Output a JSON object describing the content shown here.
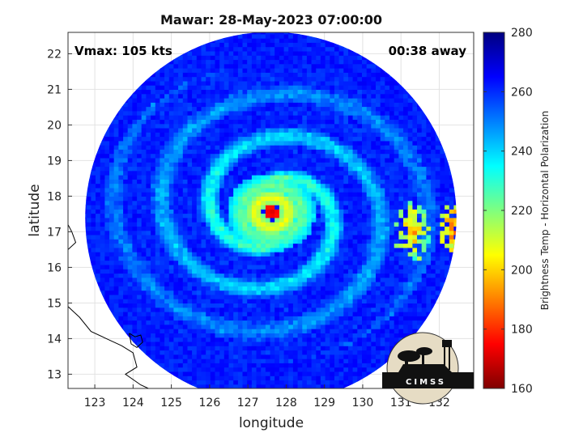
{
  "chart_data": {
    "type": "heatmap",
    "title": "Mawar: 28-May-2023 07:00:00",
    "xlabel": "longitude",
    "ylabel": "latitude",
    "xlim": [
      122.3,
      132.9
    ],
    "ylim": [
      12.6,
      22.6
    ],
    "xticks": [
      123,
      124,
      125,
      126,
      127,
      128,
      129,
      130,
      131,
      132
    ],
    "yticks": [
      13,
      14,
      15,
      16,
      17,
      18,
      19,
      20,
      21,
      22
    ],
    "grid": true,
    "annotations": {
      "intensity": "Vmax: 105 kts",
      "time_offset": "00:38 away"
    },
    "storm_center": {
      "lon": 127.6,
      "lat": 17.55
    },
    "swath": {
      "center_lon": 127.6,
      "center_lat": 17.4,
      "radius_deg": 4.85
    },
    "colorbar": {
      "label": "Brightness Temp - Horizontal Polarization",
      "min": 160,
      "max": 280,
      "ticks": [
        160,
        180,
        200,
        220,
        240,
        260,
        280
      ],
      "colormap": "jet"
    },
    "features": [
      {
        "name": "eye",
        "lon": 127.62,
        "lat": 17.55,
        "tb": 170
      },
      {
        "name": "eyewall",
        "radius_deg": 0.42,
        "tb": 205
      },
      {
        "name": "inner rainband",
        "radius_deg": 0.75,
        "tb": 222
      },
      {
        "name": "outer rainbands",
        "tb": 238
      },
      {
        "name": "background ocean",
        "tb": 262
      },
      {
        "name": "convective cells east",
        "lon": 131.3,
        "lat": 17.0,
        "tb": 185
      },
      {
        "name": "convective cell far east",
        "lon": 132.5,
        "lat": 17.1,
        "tb": 175
      }
    ]
  },
  "logo": {
    "text": "CIMSS"
  }
}
